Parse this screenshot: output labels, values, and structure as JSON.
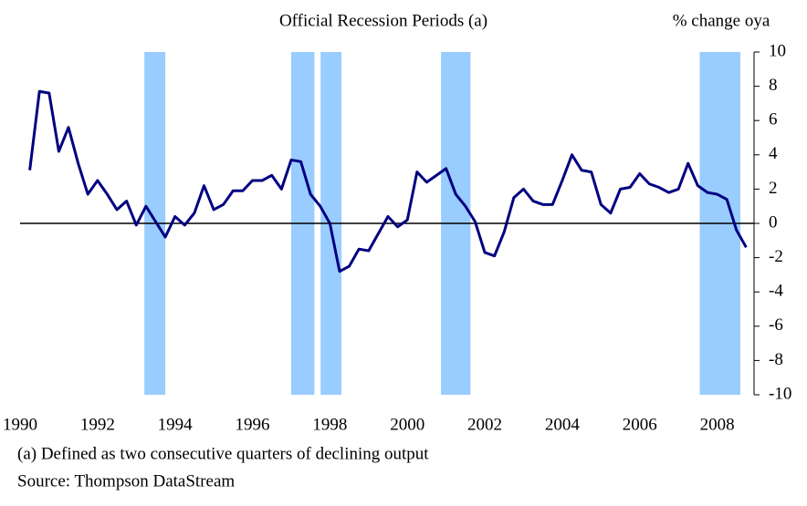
{
  "chart_data": {
    "type": "line",
    "title": "Official Recession Periods (a)",
    "y_axis_label": "% change oya",
    "footnote": "(a) Defined as two consecutive quarters of declining output",
    "source": "Source:  Thompson DataStream",
    "x": [
      1990.25,
      1990.5,
      1990.75,
      1991,
      1991.25,
      1991.5,
      1991.75,
      1992,
      1992.25,
      1992.5,
      1992.75,
      1993,
      1993.25,
      1993.5,
      1993.75,
      1994,
      1994.25,
      1994.5,
      1994.75,
      1995,
      1995.25,
      1995.5,
      1995.75,
      1996,
      1996.25,
      1996.5,
      1996.75,
      1997,
      1997.25,
      1997.5,
      1997.75,
      1998,
      1998.25,
      1998.5,
      1998.75,
      1999,
      1999.25,
      1999.5,
      1999.75,
      2000,
      2000.25,
      2000.5,
      2000.75,
      2001,
      2001.25,
      2001.5,
      2001.75,
      2002,
      2002.25,
      2002.5,
      2002.75,
      2003,
      2003.25,
      2003.5,
      2003.75,
      2004,
      2004.25,
      2004.5,
      2004.75,
      2005,
      2005.25,
      2005.5,
      2005.75,
      2006,
      2006.25,
      2006.5,
      2006.75,
      2007,
      2007.25,
      2007.5,
      2007.75,
      2008,
      2008.25,
      2008.5,
      2008.75
    ],
    "series": [
      {
        "name": "% change oya",
        "color": "#000080",
        "values": [
          3.1,
          7.7,
          7.6,
          4.2,
          5.6,
          3.5,
          1.7,
          2.5,
          1.7,
          0.8,
          1.3,
          -0.1,
          1.0,
          0.1,
          -0.8,
          0.4,
          -0.1,
          0.6,
          2.2,
          0.8,
          1.1,
          1.9,
          1.9,
          2.5,
          2.5,
          2.8,
          2.0,
          3.7,
          3.6,
          1.7,
          1.0,
          0.0,
          -2.8,
          -2.5,
          -1.5,
          -1.6,
          -0.6,
          0.4,
          -0.2,
          0.2,
          3.0,
          2.4,
          2.8,
          3.2,
          1.7,
          1.0,
          0.1,
          -1.7,
          -1.9,
          -0.5,
          1.5,
          2.0,
          1.3,
          1.1,
          1.1,
          2.5,
          4.0,
          3.1,
          3.0,
          1.1,
          0.6,
          2.0,
          2.1,
          2.9,
          2.3,
          2.1,
          1.8,
          2.0,
          3.5,
          2.2,
          1.8,
          1.7,
          1.4,
          -0.4,
          -1.4
        ]
      }
    ],
    "recessions": [
      [
        1993.21,
        1993.75
      ],
      [
        1997.0,
        1997.6
      ],
      [
        1997.76,
        1998.3
      ],
      [
        2000.87,
        2001.63
      ],
      [
        2007.55,
        2008.6
      ]
    ],
    "recession_color": "#99ccff",
    "xlim": [
      1990,
      2009
    ],
    "xticks": [
      1990,
      1992,
      1994,
      1996,
      1998,
      2000,
      2002,
      2004,
      2006,
      2008
    ],
    "ylim": [
      -10,
      10
    ],
    "yticks": [
      -10,
      -8,
      -6,
      -4,
      -2,
      0,
      2,
      4,
      6,
      8,
      10
    ],
    "zero_line": true
  }
}
